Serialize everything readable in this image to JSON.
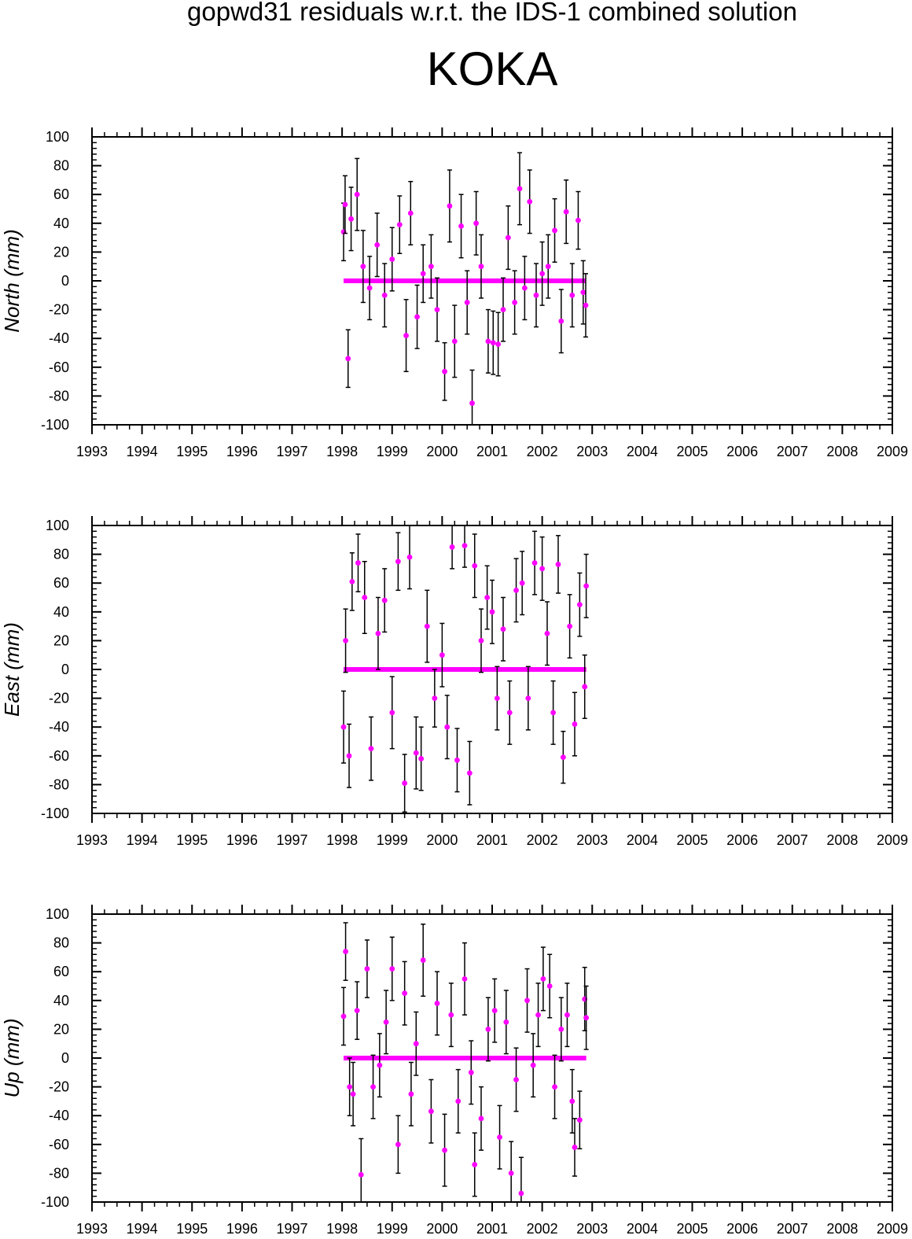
{
  "figure": {
    "title": "gopwd31 residuals w.r.t. the IDS-1 combined solution",
    "station": "KOKA"
  },
  "colors": {
    "points": "#ff00ff",
    "errorbars": "#000000",
    "axes": "#000000"
  },
  "chart_data": [
    {
      "type": "scatter",
      "title": "",
      "xlabel": "",
      "ylabel": "North (mm)",
      "xlim": [
        1993,
        2009
      ],
      "ylim": [
        -100,
        100
      ],
      "xticks": [
        "1993",
        "1994",
        "1995",
        "1996",
        "1997",
        "1998",
        "1999",
        "2000",
        "2001",
        "2002",
        "2003",
        "2004",
        "2005",
        "2006",
        "2007",
        "2008",
        "2009"
      ],
      "yticks": [
        "-100",
        "-80",
        "-60",
        "-40",
        "-20",
        "0",
        "20",
        "40",
        "60",
        "80",
        "100"
      ],
      "grid": false,
      "error_bars": true,
      "series": [
        {
          "x": [
            1998.03,
            1998.06,
            1998.12,
            1998.18,
            1998.3,
            1998.42,
            1998.55,
            1998.7,
            1998.85,
            1999.0,
            1999.15,
            1999.28,
            1999.37,
            1999.5,
            1999.62,
            1999.78,
            1999.9,
            2000.05,
            2000.15,
            2000.25,
            2000.38,
            2000.5,
            2000.6,
            2000.68,
            2000.78,
            2000.92,
            2001.02,
            2001.12,
            2001.22,
            2001.32,
            2001.45,
            2001.55,
            2001.65,
            2001.75,
            2001.88,
            2002.0,
            2002.12,
            2002.25,
            2002.38,
            2002.48,
            2002.6,
            2002.72,
            2002.82,
            2002.87
          ],
          "y": [
            34,
            53,
            -54,
            43,
            60,
            10,
            -5,
            25,
            -10,
            15,
            39,
            -38,
            47,
            -25,
            5,
            10,
            -20,
            -63,
            52,
            -42,
            38,
            -15,
            -85,
            40,
            10,
            -42,
            -43,
            -44,
            -20,
            30,
            -15,
            64,
            -5,
            55,
            -10,
            5,
            10,
            35,
            -28,
            48,
            -10,
            42,
            -8,
            -17
          ],
          "err": [
            20,
            20,
            20,
            22,
            25,
            25,
            22,
            22,
            22,
            22,
            20,
            25,
            22,
            22,
            20,
            22,
            22,
            20,
            25,
            25,
            22,
            22,
            23,
            22,
            22,
            22,
            22,
            22,
            22,
            22,
            22,
            25,
            22,
            22,
            22,
            22,
            22,
            22,
            22,
            22,
            22,
            20,
            22,
            22
          ]
        }
      ]
    },
    {
      "type": "scatter",
      "title": "",
      "xlabel": "",
      "ylabel": "East (mm)",
      "xlim": [
        1993,
        2009
      ],
      "ylim": [
        -100,
        100
      ],
      "xticks": [
        "1993",
        "1994",
        "1995",
        "1996",
        "1997",
        "1998",
        "1999",
        "2000",
        "2001",
        "2002",
        "2003",
        "2004",
        "2005",
        "2006",
        "2007",
        "2008",
        "2009"
      ],
      "yticks": [
        "-100",
        "-80",
        "-60",
        "-40",
        "-20",
        "0",
        "20",
        "40",
        "60",
        "80",
        "100"
      ],
      "grid": false,
      "error_bars": true,
      "series": [
        {
          "x": [
            1998.03,
            1998.07,
            1998.14,
            1998.2,
            1998.32,
            1998.45,
            1998.58,
            1998.72,
            1998.85,
            1999.0,
            1999.12,
            1999.25,
            1999.35,
            1999.48,
            1999.58,
            1999.7,
            1999.85,
            2000.0,
            2000.1,
            2000.2,
            2000.3,
            2000.45,
            2000.55,
            2000.65,
            2000.78,
            2000.9,
            2001.0,
            2001.1,
            2001.22,
            2001.35,
            2001.48,
            2001.6,
            2001.72,
            2001.85,
            2002.0,
            2002.1,
            2002.22,
            2002.32,
            2002.42,
            2002.55,
            2002.65,
            2002.75,
            2002.85,
            2002.88
          ],
          "y": [
            -40,
            20,
            -60,
            61,
            74,
            50,
            -55,
            25,
            48,
            -30,
            75,
            -79,
            78,
            -58,
            -62,
            30,
            -20,
            10,
            -40,
            85,
            -63,
            86,
            -72,
            72,
            20,
            50,
            40,
            -20,
            28,
            -30,
            55,
            60,
            -20,
            74,
            70,
            25,
            -30,
            73,
            -61,
            30,
            -38,
            45,
            -12,
            58
          ],
          "err": [
            25,
            22,
            22,
            20,
            20,
            25,
            22,
            25,
            22,
            25,
            20,
            20,
            22,
            25,
            22,
            25,
            20,
            22,
            22,
            15,
            22,
            15,
            22,
            22,
            22,
            22,
            22,
            22,
            22,
            22,
            22,
            22,
            22,
            22,
            22,
            22,
            22,
            20,
            18,
            22,
            22,
            22,
            22,
            22
          ]
        }
      ]
    },
    {
      "type": "scatter",
      "title": "",
      "xlabel": "",
      "ylabel": "Up (mm)",
      "xlim": [
        1993,
        2009
      ],
      "ylim": [
        -100,
        100
      ],
      "xticks": [
        "1993",
        "1994",
        "1995",
        "1996",
        "1997",
        "1998",
        "1999",
        "2000",
        "2001",
        "2002",
        "2003",
        "2004",
        "2005",
        "2006",
        "2007",
        "2008",
        "2009"
      ],
      "yticks": [
        "-100",
        "-80",
        "-60",
        "-40",
        "-20",
        "0",
        "20",
        "40",
        "60",
        "80",
        "100"
      ],
      "grid": false,
      "error_bars": true,
      "series": [
        {
          "x": [
            1998.03,
            1998.07,
            1998.15,
            1998.22,
            1998.3,
            1998.38,
            1998.5,
            1998.62,
            1998.75,
            1998.88,
            1999.0,
            1999.12,
            1999.25,
            1999.38,
            1999.48,
            1999.62,
            1999.78,
            1999.9,
            2000.05,
            2000.18,
            2000.32,
            2000.45,
            2000.58,
            2000.65,
            2000.78,
            2000.92,
            2001.05,
            2001.15,
            2001.28,
            2001.38,
            2001.48,
            2001.58,
            2001.7,
            2001.82,
            2001.92,
            2002.02,
            2002.15,
            2002.25,
            2002.38,
            2002.5,
            2002.6,
            2002.65,
            2002.75,
            2002.85,
            2002.88
          ],
          "y": [
            29,
            74,
            -20,
            -25,
            33,
            -81,
            62,
            -20,
            -5,
            25,
            62,
            -60,
            45,
            -25,
            10,
            68,
            -37,
            38,
            -64,
            30,
            -30,
            55,
            -10,
            -74,
            -42,
            20,
            33,
            -55,
            25,
            -80,
            -15,
            -94,
            40,
            -5,
            30,
            55,
            50,
            -20,
            20,
            30,
            -30,
            -62,
            -43,
            41,
            28
          ],
          "err": [
            20,
            20,
            20,
            22,
            20,
            25,
            20,
            22,
            22,
            22,
            22,
            20,
            22,
            22,
            22,
            25,
            22,
            22,
            25,
            22,
            22,
            25,
            22,
            22,
            22,
            22,
            22,
            22,
            22,
            22,
            22,
            25,
            22,
            22,
            22,
            22,
            22,
            22,
            22,
            22,
            22,
            20,
            20,
            22,
            22
          ]
        }
      ]
    }
  ]
}
